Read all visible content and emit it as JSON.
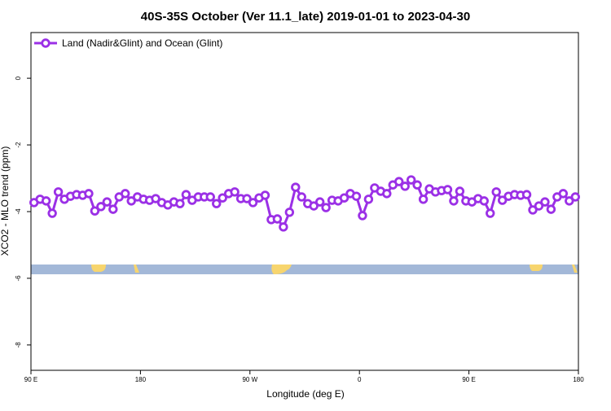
{
  "chart_data": {
    "type": "line",
    "title": "40S-35S October (Ver 11.1_late)   2019-01-01 to 2023-04-30",
    "x_label": "Longitude (deg E)",
    "y_label": "XCO2 - MLO trend (ppm)",
    "legend": "top-left",
    "xlim": [
      90,
      540
    ],
    "ylim": [
      1.37,
      -8.76
    ],
    "xticks": [
      {
        "value": 90,
        "label": "90 E"
      },
      {
        "value": 180,
        "label": "180"
      },
      {
        "value": 270,
        "label": "90 W"
      },
      {
        "value": 360,
        "label": "0"
      },
      {
        "value": 450,
        "label": "90 E"
      },
      {
        "value": 540,
        "label": "180"
      }
    ],
    "yticks": [
      0,
      -2,
      -4,
      -6,
      -8
    ],
    "x": [
      92.5,
      97.5,
      102.5,
      107.5,
      112.5,
      117.5,
      122.5,
      127.5,
      132.5,
      137.5,
      142.5,
      147.5,
      152.5,
      157.5,
      162.5,
      167.5,
      172.5,
      177.5,
      182.5,
      187.5,
      192.5,
      197.5,
      202.5,
      207.5,
      212.5,
      217.5,
      222.5,
      227.5,
      232.5,
      237.5,
      242.5,
      247.5,
      252.5,
      257.5,
      262.5,
      267.5,
      272.5,
      277.5,
      282.5,
      287.5,
      292.5,
      297.5,
      302.5,
      307.5,
      312.5,
      317.5,
      322.5,
      327.5,
      332.5,
      337.5,
      342.5,
      347.5,
      352.5,
      357.5,
      362.5,
      367.5,
      372.5,
      377.5,
      382.5,
      387.5,
      392.5,
      397.5,
      402.5,
      407.5,
      412.5,
      417.5,
      422.5,
      427.5,
      432.5,
      437.5,
      442.5,
      447.5,
      452.5,
      457.5,
      462.5,
      467.5,
      472.5,
      477.5,
      482.5,
      487.5,
      492.5,
      497.5,
      502.5,
      507.5,
      512.5,
      517.5,
      522.5,
      527.5,
      532.5,
      537.5
    ],
    "series": [
      {
        "name": "Land (Nadir&Glint) and Ocean (Glint)",
        "color": "#9b30e6",
        "values": [
          -3.73,
          -3.63,
          -3.68,
          -4.05,
          -3.41,
          -3.63,
          -3.54,
          -3.49,
          -3.51,
          -3.46,
          -3.98,
          -3.85,
          -3.71,
          -3.93,
          -3.56,
          -3.46,
          -3.68,
          -3.56,
          -3.63,
          -3.66,
          -3.61,
          -3.73,
          -3.8,
          -3.71,
          -3.76,
          -3.49,
          -3.66,
          -3.56,
          -3.56,
          -3.56,
          -3.76,
          -3.59,
          -3.46,
          -3.41,
          -3.61,
          -3.61,
          -3.73,
          -3.59,
          -3.51,
          -4.24,
          -4.22,
          -4.46,
          -4.02,
          -3.27,
          -3.56,
          -3.76,
          -3.83,
          -3.71,
          -3.88,
          -3.66,
          -3.68,
          -3.59,
          -3.46,
          -3.54,
          -4.12,
          -3.63,
          -3.29,
          -3.39,
          -3.46,
          -3.2,
          -3.1,
          -3.24,
          -3.05,
          -3.2,
          -3.63,
          -3.32,
          -3.41,
          -3.37,
          -3.34,
          -3.68,
          -3.39,
          -3.68,
          -3.71,
          -3.61,
          -3.68,
          -4.05,
          -3.41,
          -3.66,
          -3.54,
          -3.49,
          -3.51,
          -3.49,
          -3.95,
          -3.83,
          -3.71,
          -3.93,
          -3.56,
          -3.46,
          -3.68,
          -3.56
        ]
      }
    ]
  }
}
